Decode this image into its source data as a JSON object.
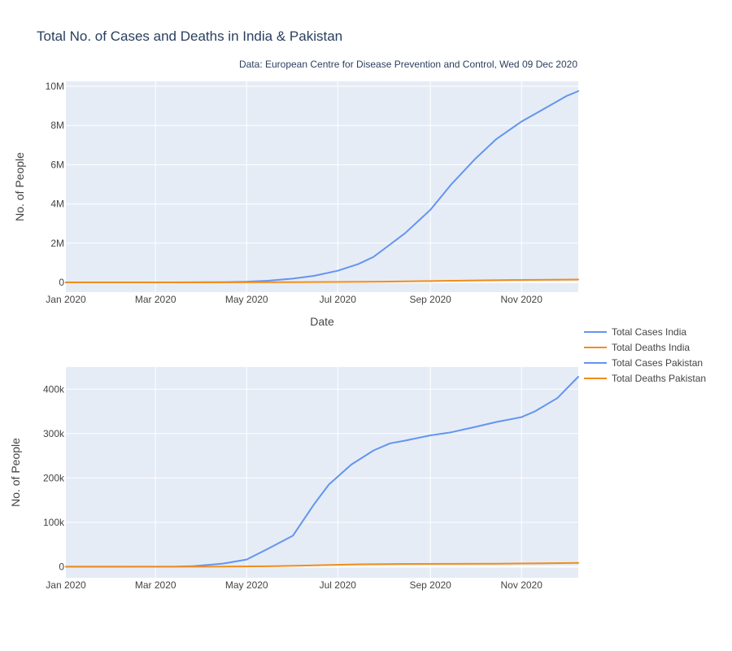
{
  "title": "Total No. of Cases and Deaths in India & Pakistan",
  "subtitle": "Data: European Centre for Disease Prevention and Control, Wed 09 Dec 2020",
  "colors": {
    "cases": "#6495ed",
    "deaths": "#f28c1b",
    "plot_bg": "#e5ecf6",
    "grid": "#ffffff"
  },
  "legend": [
    {
      "label": "Total Cases India",
      "color": "#6495ed"
    },
    {
      "label": "Total Deaths India",
      "color": "#f28c1b"
    },
    {
      "label": "Total Cases Pakistan",
      "color": "#6495ed"
    },
    {
      "label": "Total Deaths Pakistan",
      "color": "#f28c1b"
    }
  ],
  "chart_data": [
    {
      "type": "line",
      "xlabel": "Date",
      "ylabel": "No. of People",
      "xlim": [
        "2020-01-01",
        "2020-12-09"
      ],
      "ylim": [
        -500000,
        10250000
      ],
      "x_ticks": [
        {
          "date": "2020-01-01",
          "label": "Jan 2020"
        },
        {
          "date": "2020-03-01",
          "label": "Mar 2020"
        },
        {
          "date": "2020-05-01",
          "label": "May 2020"
        },
        {
          "date": "2020-07-01",
          "label": "Jul 2020"
        },
        {
          "date": "2020-09-01",
          "label": "Sep 2020"
        },
        {
          "date": "2020-11-01",
          "label": "Nov 2020"
        }
      ],
      "y_ticks": [
        {
          "value": 0,
          "label": "0"
        },
        {
          "value": 2000000,
          "label": "2M"
        },
        {
          "value": 4000000,
          "label": "4M"
        },
        {
          "value": 6000000,
          "label": "6M"
        },
        {
          "value": 8000000,
          "label": "8M"
        },
        {
          "value": 10000000,
          "label": "10M"
        }
      ],
      "series": [
        {
          "name": "Total Cases India",
          "color": "#6495ed",
          "points": [
            [
              "2020-01-01",
              0
            ],
            [
              "2020-03-15",
              100
            ],
            [
              "2020-04-15",
              12000
            ],
            [
              "2020-05-01",
              35000
            ],
            [
              "2020-05-15",
              80000
            ],
            [
              "2020-06-01",
              190000
            ],
            [
              "2020-06-15",
              330000
            ],
            [
              "2020-07-01",
              590000
            ],
            [
              "2020-07-15",
              940000
            ],
            [
              "2020-07-25",
              1300000
            ],
            [
              "2020-08-01",
              1700000
            ],
            [
              "2020-08-15",
              2500000
            ],
            [
              "2020-09-01",
              3700000
            ],
            [
              "2020-09-15",
              5000000
            ],
            [
              "2020-10-01",
              6300000
            ],
            [
              "2020-10-15",
              7300000
            ],
            [
              "2020-11-01",
              8200000
            ],
            [
              "2020-11-15",
              8800000
            ],
            [
              "2020-12-01",
              9500000
            ],
            [
              "2020-12-09",
              9750000
            ]
          ]
        },
        {
          "name": "Total Deaths India",
          "color": "#f28c1b",
          "points": [
            [
              "2020-01-01",
              0
            ],
            [
              "2020-04-01",
              50
            ],
            [
              "2020-05-01",
              1100
            ],
            [
              "2020-06-01",
              5400
            ],
            [
              "2020-07-01",
              17400
            ],
            [
              "2020-08-01",
              36500
            ],
            [
              "2020-09-01",
              65300
            ],
            [
              "2020-10-01",
              98700
            ],
            [
              "2020-11-01",
              122000
            ],
            [
              "2020-12-01",
              137600
            ],
            [
              "2020-12-09",
              141400
            ]
          ]
        }
      ]
    },
    {
      "type": "line",
      "xlabel": "",
      "ylabel": "No. of People",
      "xlim": [
        "2020-01-01",
        "2020-12-09"
      ],
      "ylim": [
        -25000,
        450000
      ],
      "x_ticks": [
        {
          "date": "2020-01-01",
          "label": "Jan 2020"
        },
        {
          "date": "2020-03-01",
          "label": "Mar 2020"
        },
        {
          "date": "2020-05-01",
          "label": "May 2020"
        },
        {
          "date": "2020-07-01",
          "label": "Jul 2020"
        },
        {
          "date": "2020-09-01",
          "label": "Sep 2020"
        },
        {
          "date": "2020-11-01",
          "label": "Nov 2020"
        }
      ],
      "y_ticks": [
        {
          "value": 0,
          "label": "0"
        },
        {
          "value": 100000,
          "label": "100k"
        },
        {
          "value": 200000,
          "label": "200k"
        },
        {
          "value": 300000,
          "label": "300k"
        },
        {
          "value": 400000,
          "label": "400k"
        }
      ],
      "series": [
        {
          "name": "Total Cases Pakistan",
          "color": "#6495ed",
          "points": [
            [
              "2020-01-01",
              0
            ],
            [
              "2020-03-15",
              50
            ],
            [
              "2020-03-26",
              1000
            ],
            [
              "2020-04-15",
              7000
            ],
            [
              "2020-05-01",
              16000
            ],
            [
              "2020-05-15",
              40000
            ],
            [
              "2020-06-01",
              70000
            ],
            [
              "2020-06-15",
              140000
            ],
            [
              "2020-06-25",
              185000
            ],
            [
              "2020-07-10",
              230000
            ],
            [
              "2020-07-25",
              262000
            ],
            [
              "2020-08-05",
              278000
            ],
            [
              "2020-08-15",
              284000
            ],
            [
              "2020-09-01",
              296000
            ],
            [
              "2020-09-15",
              303000
            ],
            [
              "2020-10-01",
              315000
            ],
            [
              "2020-10-15",
              326000
            ],
            [
              "2020-11-01",
              337000
            ],
            [
              "2020-11-10",
              350000
            ],
            [
              "2020-11-25",
              380000
            ],
            [
              "2020-12-09",
              428000
            ]
          ]
        },
        {
          "name": "Total Deaths Pakistan",
          "color": "#f28c1b",
          "points": [
            [
              "2020-01-01",
              0
            ],
            [
              "2020-03-20",
              0
            ],
            [
              "2020-04-15",
              100
            ],
            [
              "2020-05-15",
              900
            ],
            [
              "2020-06-15",
              2800
            ],
            [
              "2020-07-15",
              5200
            ],
            [
              "2020-08-15",
              6200
            ],
            [
              "2020-09-15",
              6400
            ],
            [
              "2020-10-15",
              6700
            ],
            [
              "2020-11-15",
              7500
            ],
            [
              "2020-12-09",
              8600
            ]
          ]
        }
      ]
    }
  ]
}
